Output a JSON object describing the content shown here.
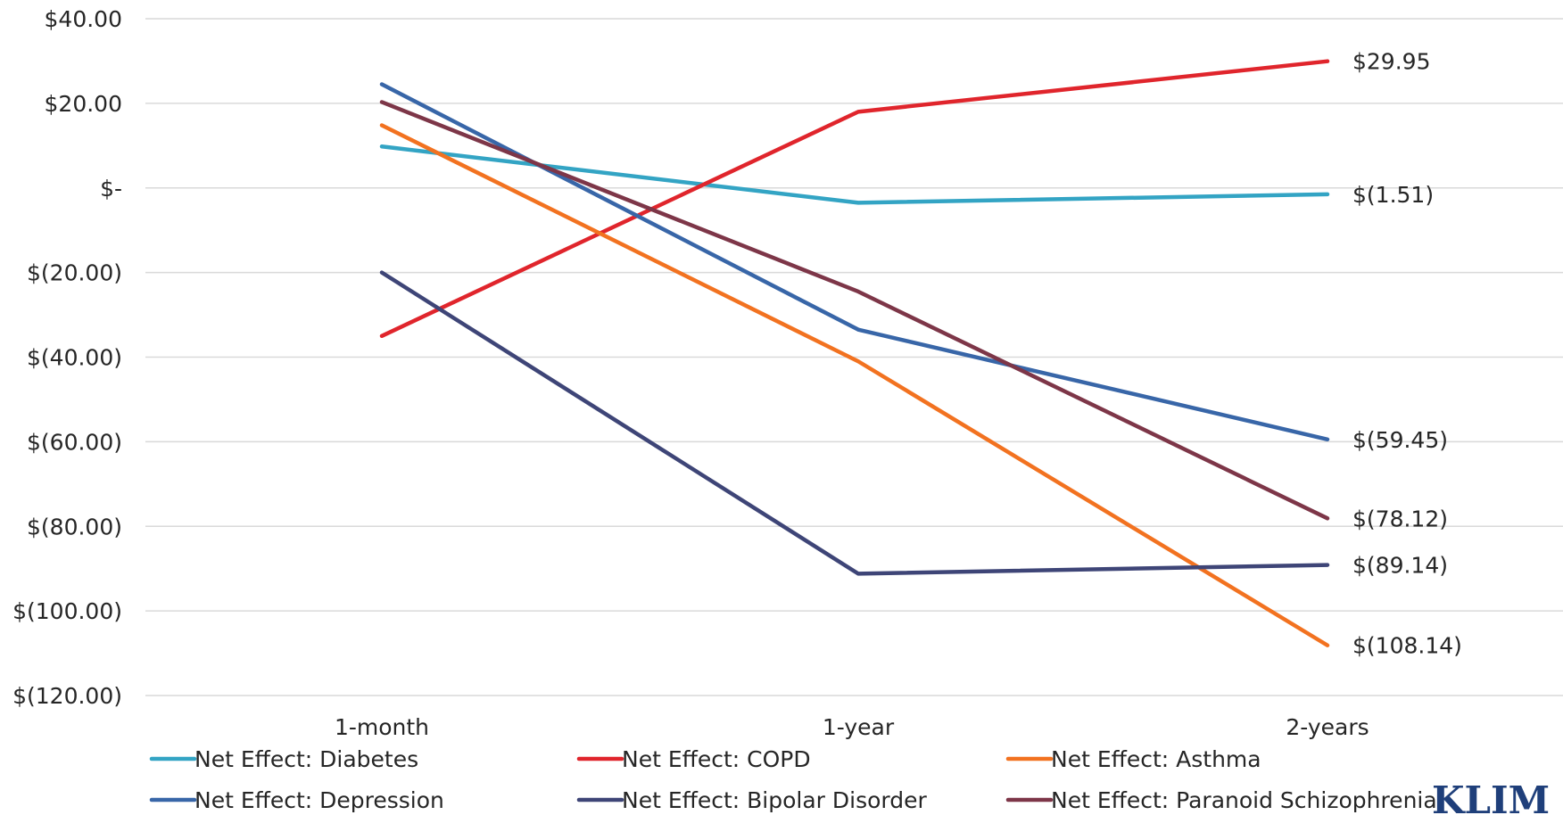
{
  "chart_data": {
    "type": "line",
    "title": "",
    "xlabel": "",
    "ylabel": "",
    "categories": [
      "1-month",
      "1-year",
      "2-years"
    ],
    "ylim": [
      -120,
      40
    ],
    "yticks": [
      40,
      20,
      0,
      -20,
      -40,
      -60,
      -80,
      -100,
      -120
    ],
    "ytick_labels": [
      "$40.00",
      "$20.00",
      "$-",
      "$(20.00)",
      "$(40.00)",
      "$(60.00)",
      "$(80.00)",
      "$(100.00)",
      "$(120.00)"
    ],
    "grid": true,
    "legend_position": "bottom",
    "series": [
      {
        "name": "Net Effect: Diabetes",
        "color": "#33a4c4",
        "values": [
          9.8,
          -3.5,
          -1.51
        ],
        "end_label": "$(1.51)"
      },
      {
        "name": "Net Effect: COPD",
        "color": "#e0252c",
        "values": [
          -35,
          18,
          29.95
        ],
        "end_label": "$29.95"
      },
      {
        "name": "Net Effect: Asthma",
        "color": "#f27220",
        "values": [
          14.8,
          -41,
          -108.14
        ],
        "end_label": "$(108.14)"
      },
      {
        "name": "Net Effect: Depression",
        "color": "#3866a8",
        "values": [
          24.5,
          -33.5,
          -59.45
        ],
        "end_label": "$(59.45)"
      },
      {
        "name": "Net Effect: Bipolar Disorder",
        "color": "#3e4577",
        "values": [
          -20,
          -91.2,
          -89.14
        ],
        "end_label": "$(89.14)"
      },
      {
        "name": "Net Effect: Paranoid Schizophrenia",
        "color": "#7d3648",
        "values": [
          20.3,
          -24.5,
          -78.12
        ],
        "end_label": "$(78.12)"
      }
    ]
  },
  "logo": {
    "text": "KLIM"
  }
}
